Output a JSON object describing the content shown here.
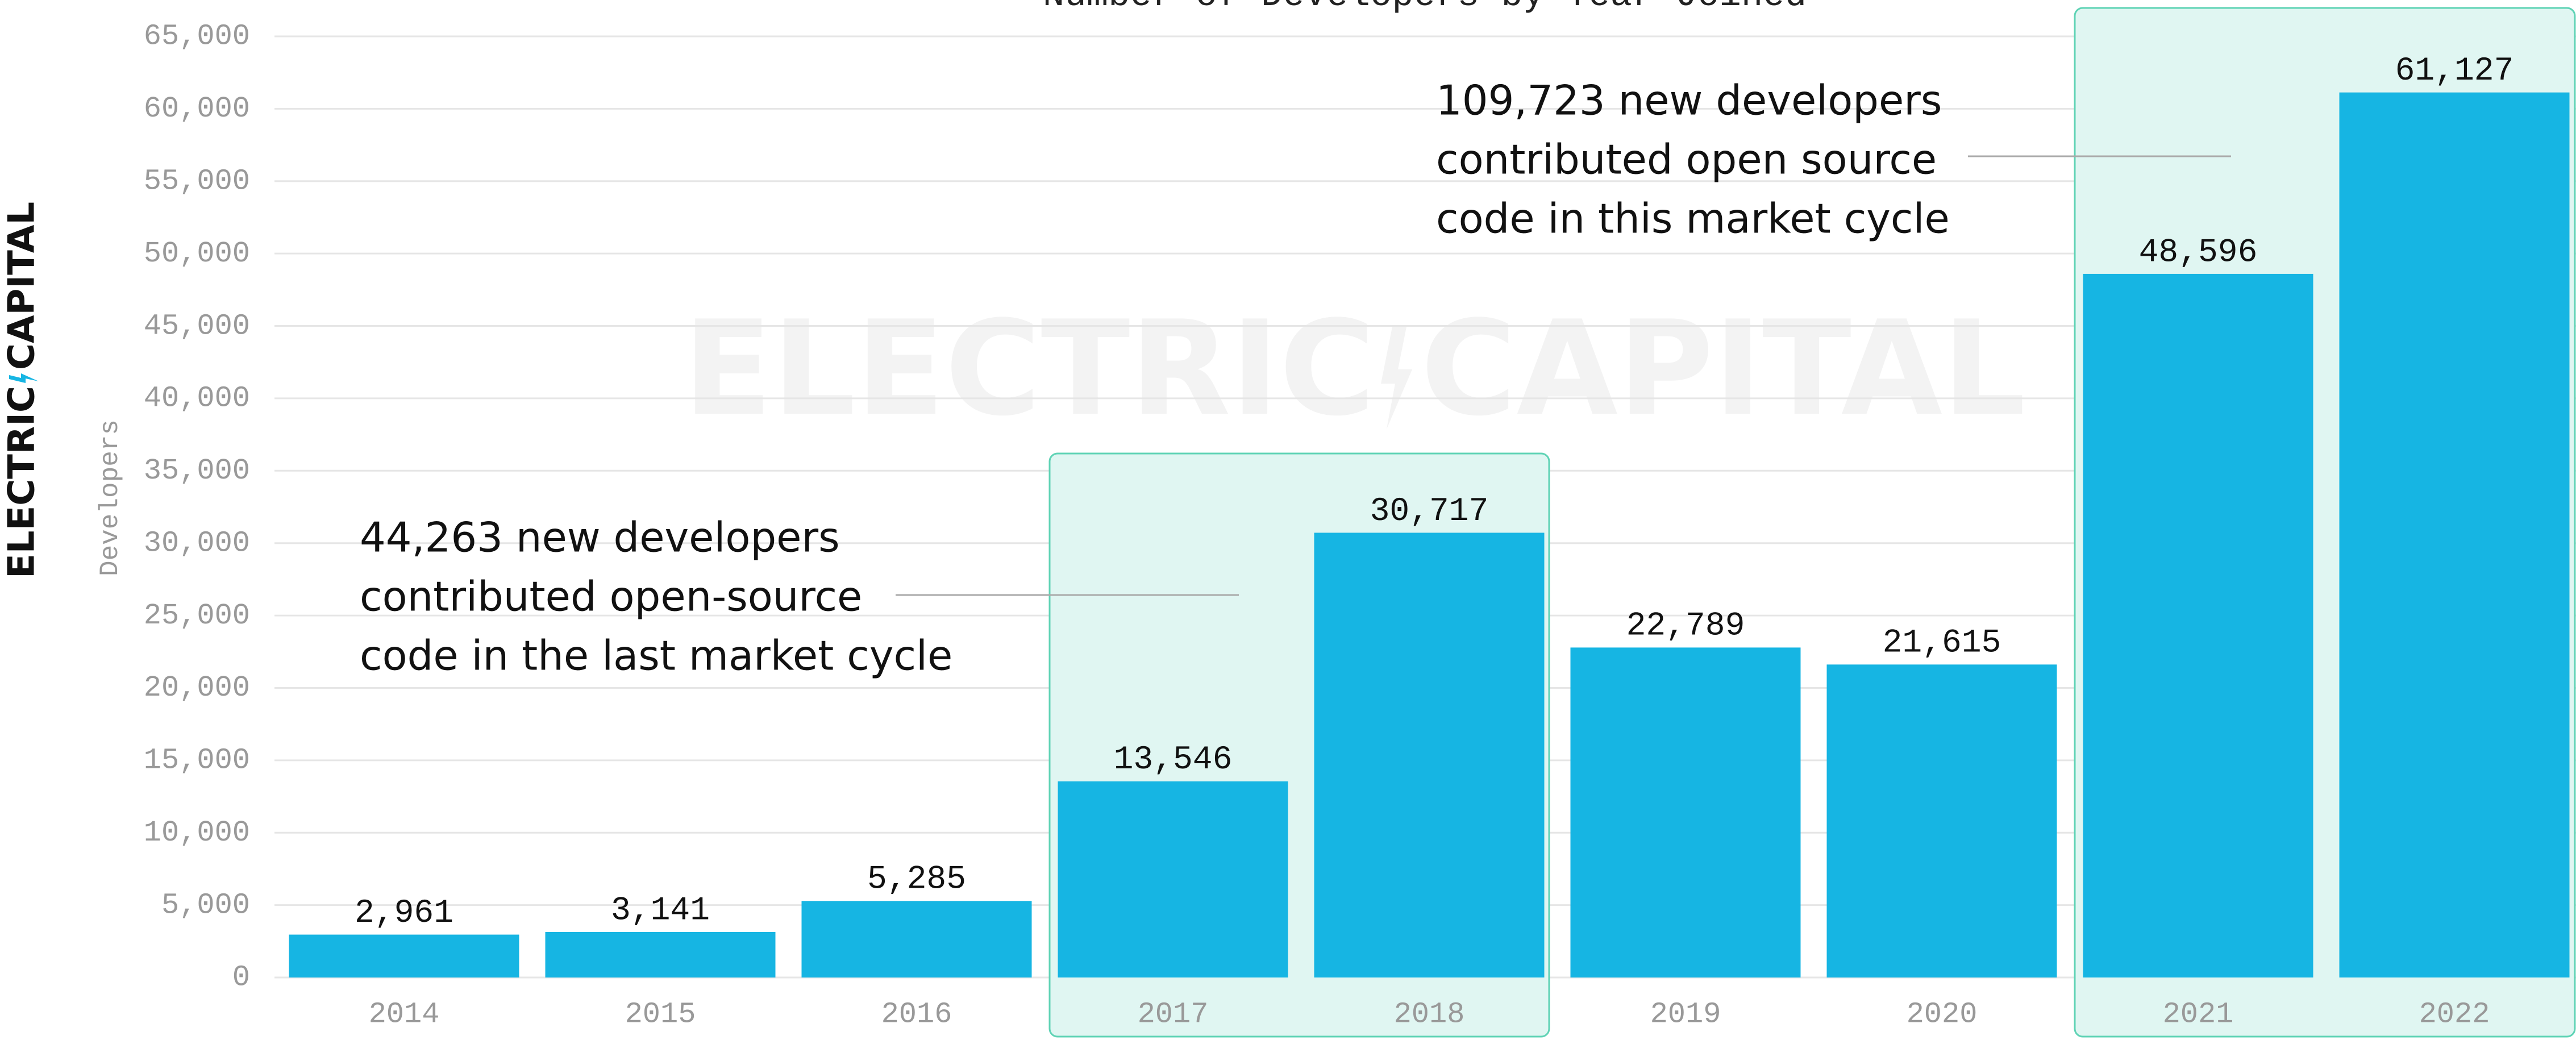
{
  "chart_data": {
    "type": "bar",
    "title": "Number of Developers by Year Joined",
    "ylabel": "Developers",
    "logo": [
      "ELECTRIC",
      "CAPITAL"
    ],
    "categories": [
      "2014",
      "2015",
      "2016",
      "2017",
      "2018",
      "2019",
      "2020",
      "2021",
      "2022"
    ],
    "values": [
      2961,
      3141,
      5285,
      13546,
      30717,
      22789,
      21615,
      48596,
      61127
    ],
    "value_labels": [
      "2,961",
      "3,141",
      "5,285",
      "13,546",
      "30,717",
      "22,789",
      "21,615",
      "48,596",
      "61,127"
    ],
    "color": "#16b5e3",
    "ylim": [
      0,
      65000
    ],
    "yticks": [
      0,
      {
        "value": 5000,
        "label": "5,000"
      },
      {
        "value": 10000,
        "label": "10,000"
      },
      {
        "value": 15000,
        "label": "15,000"
      },
      {
        "value": 20000,
        "label": "20,000"
      },
      {
        "value": 25000,
        "label": "25,000"
      },
      {
        "value": 30000,
        "label": "30,000"
      },
      {
        "value": 35000,
        "label": "35,000"
      },
      {
        "value": 40000,
        "label": "40,000"
      },
      {
        "value": 45000,
        "label": "45,000"
      },
      {
        "value": 50000,
        "label": "50,000"
      },
      {
        "value": 55000,
        "label": "55,000"
      },
      {
        "value": 60000,
        "label": "60,000"
      },
      {
        "value": 65000,
        "label": "65,000"
      }
    ],
    "grid": true,
    "annotations": [
      {
        "lines": [
          "44,263 new developers",
          "contributed open-source",
          "code in the last market cycle"
        ]
      },
      {
        "lines": [
          "109,723 new developers",
          "contributed open source",
          "code in this market cycle"
        ]
      }
    ]
  }
}
